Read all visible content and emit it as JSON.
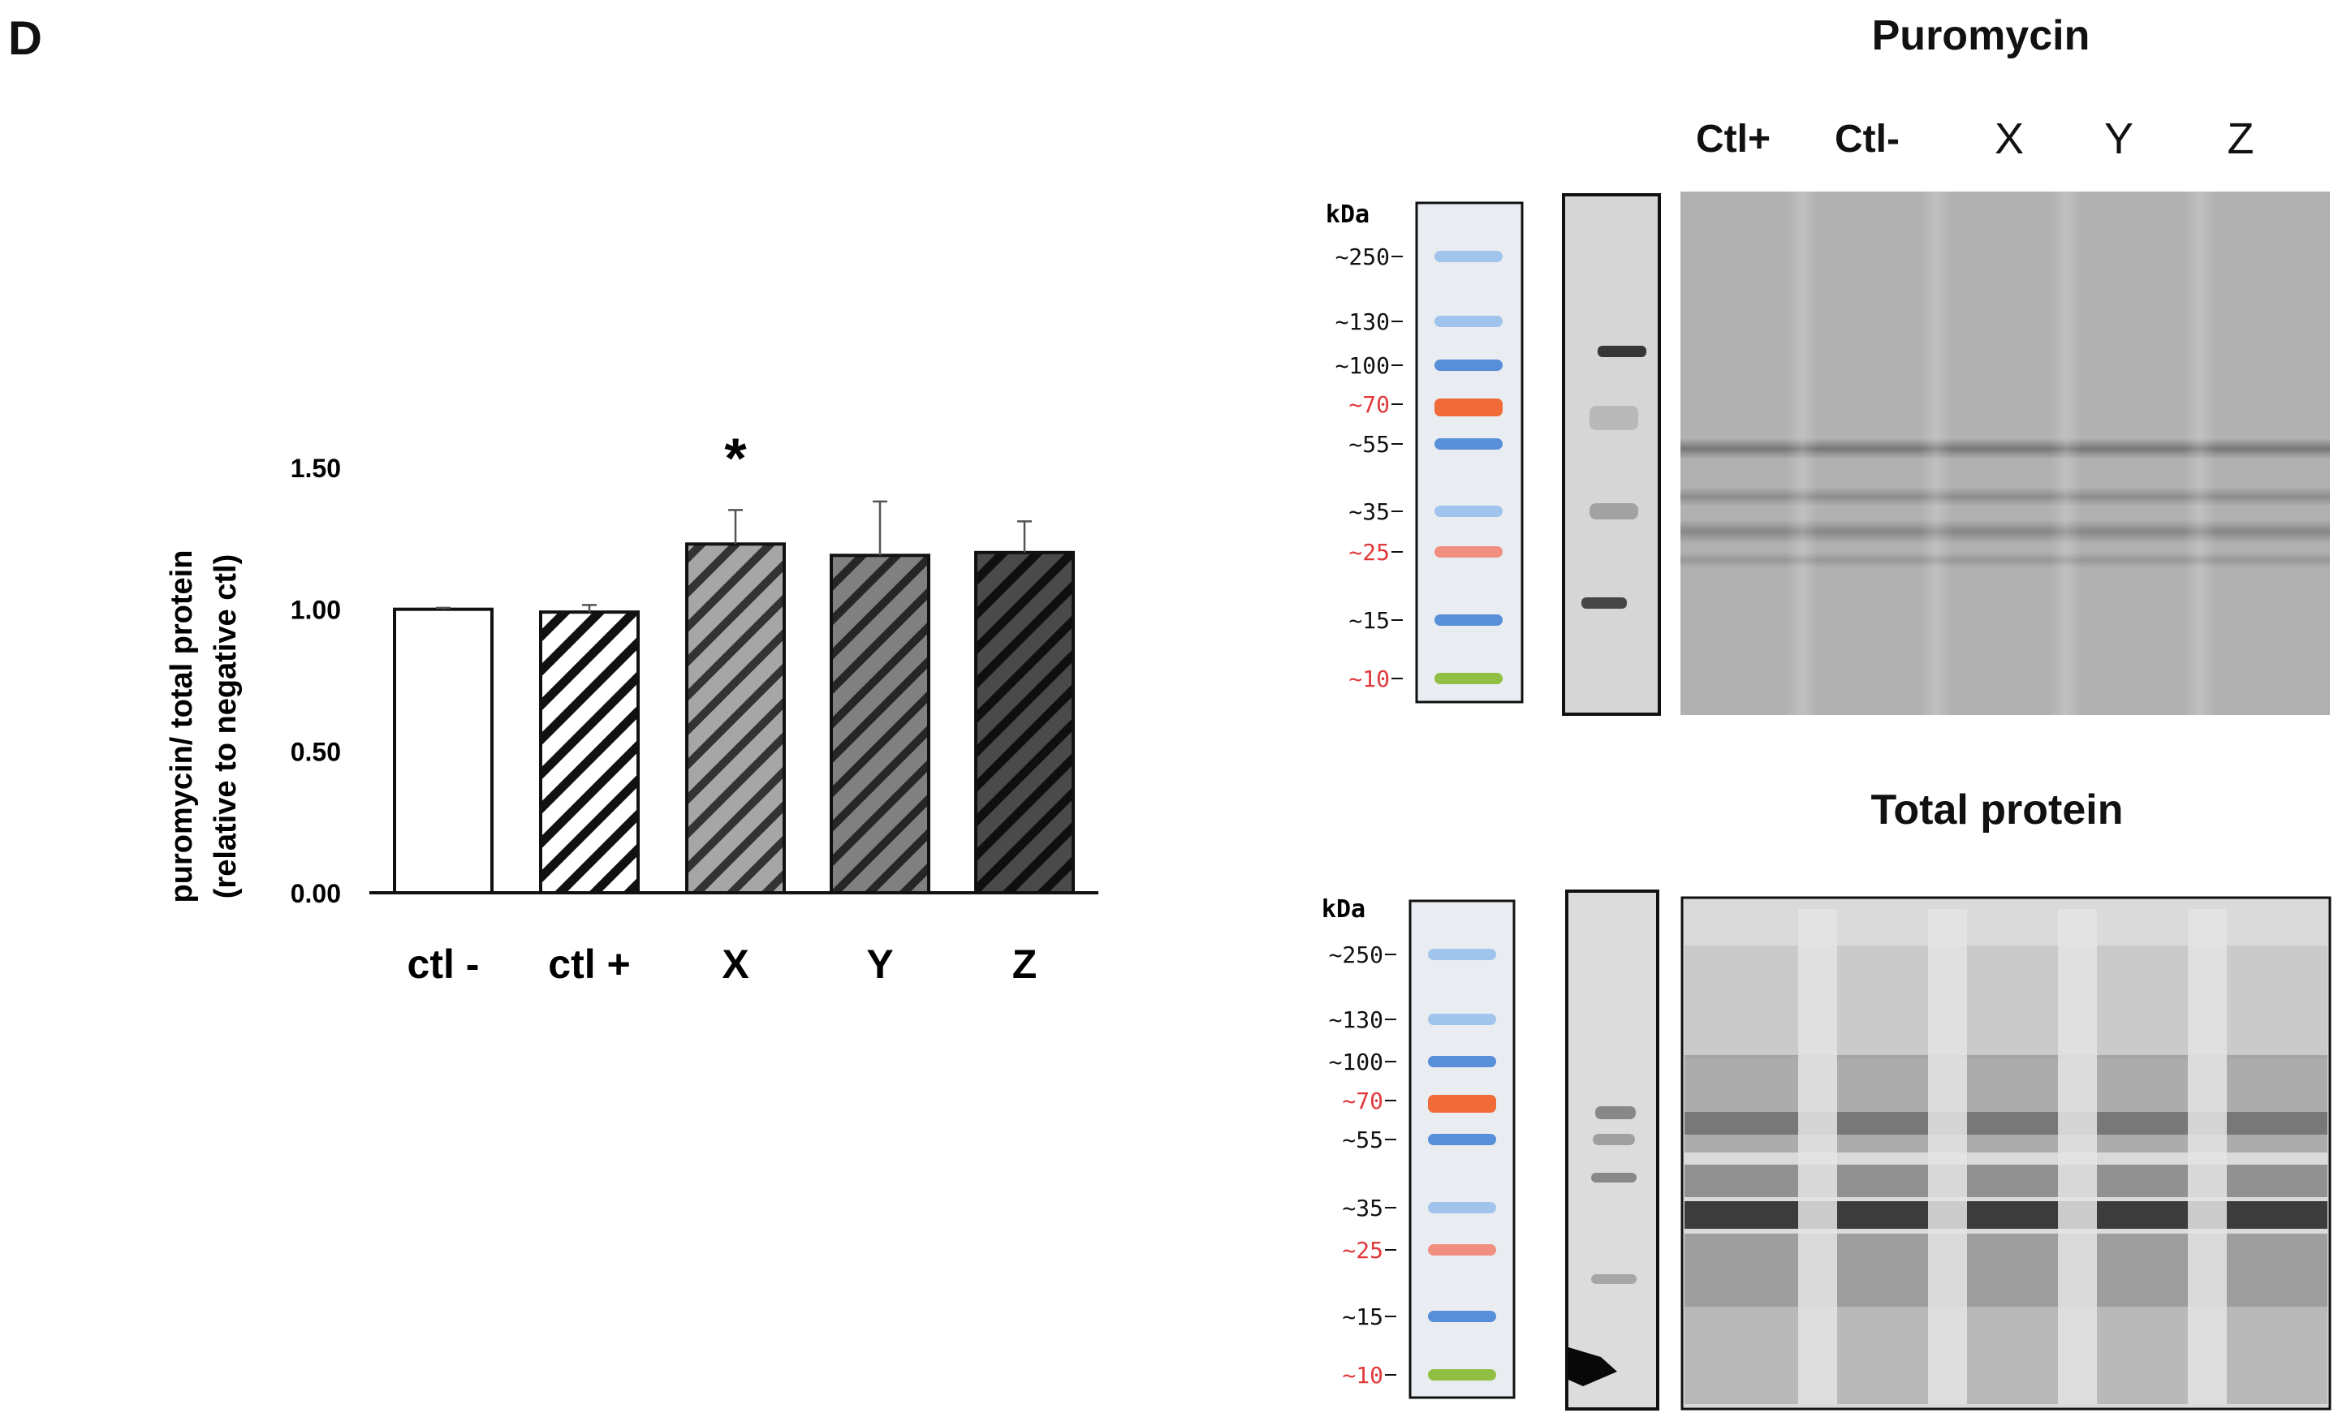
{
  "panel_label": "D",
  "chart_data": {
    "type": "bar",
    "categories": [
      "ctl -",
      "ctl +",
      "X",
      "Y",
      "Z"
    ],
    "values": [
      1.0,
      0.99,
      1.23,
      1.19,
      1.2
    ],
    "errors": [
      0.005,
      0.025,
      0.12,
      0.19,
      0.11
    ],
    "ylabel": [
      "puromycin/ total protein",
      "(relative to negative ctl)"
    ],
    "ylim": [
      0,
      1.5
    ],
    "yticks": [
      "0.00",
      "0.50",
      "1.00",
      "1.50"
    ],
    "annotations": [
      {
        "category": "X",
        "text": "*"
      }
    ],
    "bar_fill_colors": [
      "#ffffff",
      "#ffffff",
      "#9a9a9a",
      "#6e6e6e",
      "#3a3a3a"
    ],
    "hatch_colors": [
      "none",
      "#111111",
      "#333333",
      "#2a2a2a",
      "#111111"
    ]
  },
  "blots": {
    "puromycin": {
      "title": "Puromycin",
      "lanes": [
        "Ctl+",
        "Ctl-",
        "X",
        "Y",
        "Z"
      ],
      "marker_unit": "kDa",
      "markers": [
        "~250",
        "~130",
        "~100",
        "~70",
        "~55",
        "~35",
        "~25",
        "~15",
        "~10"
      ]
    },
    "total_protein": {
      "title": "Total protein",
      "marker_unit": "kDa",
      "markers": [
        "~250",
        "~130",
        "~100",
        "~70",
        "~55",
        "~35",
        "~25",
        "~15",
        "~10"
      ]
    }
  },
  "colors": {
    "marker_blue": "#4f8ad6",
    "marker_light_blue": "#9cc2ea",
    "marker_red": "#f0642c",
    "marker_pink": "#f08a78",
    "marker_green": "#8bbd3a",
    "red_label": "#e0393b"
  }
}
